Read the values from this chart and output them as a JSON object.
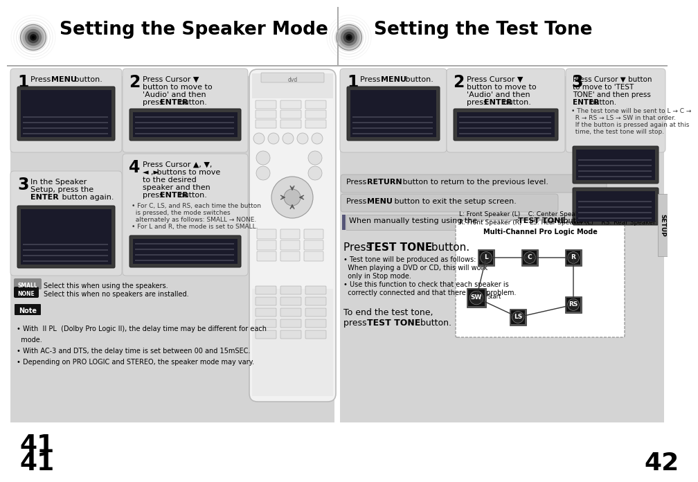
{
  "white": "#ffffff",
  "black": "#000000",
  "dark_gray": "#333333",
  "light_gray": "#d8d8d8",
  "panel_bg": "#d0d0d0",
  "step_bg": "#e0e0e0",
  "note_bg": "#e8e8e8",
  "page_left": "41",
  "page_right": "42",
  "title_left": "Setting the Speaker Mode",
  "title_right": "Setting the Test Tone",
  "small_desc": "Select this when using the speakers.",
  "none_desc": "Select this when no speakers are installed.",
  "note1": "With Π PL  (Dolby Pro Logic II), the delay time may be different for each\nmode.",
  "note2": "With AC-3 and DTS, the delay time is set between 00 and 15mSEC.",
  "note3": "Depending on PRO LOGIC and STEREO, the speaker mode may vary.",
  "multichannel_title": "Multi-Channel Pro Logic Mode",
  "speaker_label_line1": "L: Front Speaker (L)    C: Center Speaker    SW: Subwoofer",
  "speaker_label_line2": "R: Front Speaker (R)    LS: Rear Speaker (L)    RS: Rear Speaker (R)"
}
